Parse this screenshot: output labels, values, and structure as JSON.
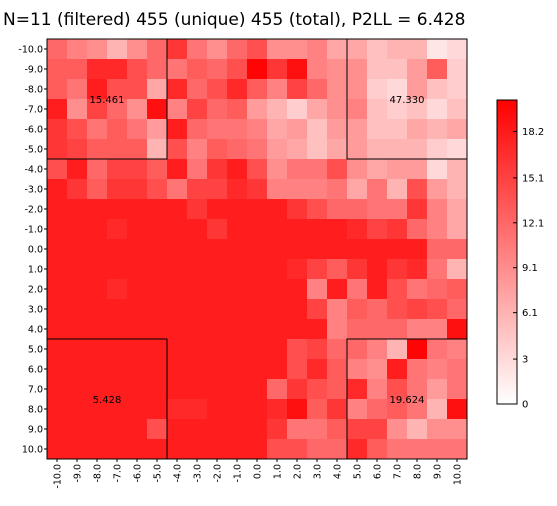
{
  "chart_data": {
    "type": "heatmap",
    "title": "N=11 (filtered) 455 (unique) 455 (total), P2LL = 6.428",
    "xlabel": "",
    "ylabel": "",
    "x_ticks": [
      "-10.0",
      "-9.0",
      "-8.0",
      "-7.0",
      "-6.0",
      "-5.0",
      "-4.0",
      "-3.0",
      "-2.0",
      "-1.0",
      "0.0",
      "1.0",
      "2.0",
      "3.0",
      "4.0",
      "5.0",
      "6.0",
      "7.0",
      "8.0",
      "9.0",
      "10.0"
    ],
    "y_ticks": [
      "-10.0",
      "-9.0",
      "-8.0",
      "-7.0",
      "-6.0",
      "-5.0",
      "-4.0",
      "-3.0",
      "-2.0",
      "-1.0",
      "0.0",
      "1.0",
      "2.0",
      "3.0",
      "4.0",
      "5.0",
      "6.0",
      "7.0",
      "8.0",
      "9.0",
      "10.0"
    ],
    "values": [
      [
        12,
        10,
        9,
        6,
        9,
        12,
        16,
        11,
        9,
        12,
        14,
        9,
        9,
        10,
        7,
        7,
        5,
        6,
        6,
        2,
        3
      ],
      [
        13,
        13,
        17,
        17,
        14,
        12,
        11,
        13,
        12,
        14,
        20,
        16,
        19,
        10,
        9,
        9,
        5,
        5,
        8,
        13,
        4
      ],
      [
        13,
        11,
        18,
        14,
        14,
        7,
        17,
        12,
        14,
        17,
        13,
        10,
        15,
        12,
        9,
        9,
        4,
        3,
        8,
        5,
        4
      ],
      [
        18,
        9,
        15,
        12,
        9,
        19,
        10,
        15,
        12,
        13,
        8,
        6,
        4,
        7,
        9,
        10,
        5,
        4,
        5,
        3,
        5
      ],
      [
        16,
        14,
        11,
        13,
        11,
        8,
        18,
        12,
        11,
        11,
        10,
        7,
        8,
        5,
        8,
        8,
        5,
        5,
        7,
        6,
        7
      ],
      [
        16,
        15,
        13,
        13,
        13,
        6,
        14,
        10,
        13,
        12,
        11,
        8,
        7,
        5,
        7,
        8,
        6,
        6,
        6,
        4,
        3
      ],
      [
        14,
        18,
        12,
        15,
        15,
        13,
        18,
        11,
        16,
        18,
        14,
        9,
        11,
        11,
        14,
        9,
        7,
        8,
        8,
        3,
        6
      ],
      [
        18,
        16,
        13,
        16,
        16,
        14,
        11,
        15,
        15,
        17,
        16,
        10,
        10,
        10,
        11,
        7,
        11,
        6,
        14,
        8,
        6
      ],
      [
        18,
        18,
        18,
        18,
        18,
        18,
        18,
        16,
        18,
        18,
        18,
        18,
        16,
        14,
        12,
        12,
        11,
        11,
        16,
        10,
        7
      ],
      [
        18,
        18,
        18,
        17,
        18,
        18,
        18,
        18,
        16,
        18,
        18,
        18,
        18,
        18,
        18,
        17,
        15,
        16,
        12,
        10,
        7
      ],
      [
        18,
        18,
        18,
        18,
        18,
        18,
        18,
        18,
        18,
        18,
        18,
        18,
        18,
        18,
        18,
        18,
        18,
        18,
        18,
        12,
        12
      ],
      [
        18,
        18,
        18,
        18,
        18,
        18,
        18,
        18,
        18,
        18,
        18,
        18,
        17,
        15,
        13,
        16,
        18,
        16,
        17,
        11,
        6
      ],
      [
        18,
        18,
        18,
        17,
        18,
        18,
        18,
        18,
        18,
        18,
        18,
        18,
        18,
        10,
        18,
        11,
        18,
        14,
        11,
        12,
        13
      ],
      [
        18,
        18,
        18,
        18,
        18,
        18,
        18,
        18,
        18,
        18,
        18,
        18,
        18,
        15,
        10,
        13,
        12,
        14,
        15,
        14,
        12
      ],
      [
        18,
        18,
        18,
        18,
        18,
        18,
        18,
        18,
        18,
        18,
        18,
        18,
        18,
        18,
        10,
        12,
        12,
        12,
        10,
        10,
        19
      ],
      [
        18,
        18,
        18,
        18,
        18,
        18,
        18,
        18,
        18,
        18,
        18,
        18,
        14,
        15,
        12,
        12,
        10,
        6,
        20,
        11,
        10
      ],
      [
        18,
        18,
        18,
        18,
        18,
        18,
        18,
        18,
        18,
        18,
        18,
        18,
        14,
        17,
        13,
        10,
        9,
        18,
        11,
        10,
        11
      ],
      [
        18,
        18,
        18,
        18,
        18,
        18,
        18,
        18,
        18,
        18,
        18,
        12,
        16,
        14,
        13,
        17,
        10,
        14,
        11,
        8,
        11
      ],
      [
        18,
        18,
        18,
        18,
        18,
        18,
        17,
        17,
        18,
        18,
        18,
        17,
        19,
        13,
        16,
        10,
        12,
        13,
        11,
        6,
        19
      ],
      [
        18,
        18,
        18,
        18,
        18,
        14,
        18,
        18,
        18,
        18,
        18,
        16,
        11,
        11,
        13,
        15,
        15,
        9,
        6,
        9,
        9
      ],
      [
        18,
        18,
        18,
        18,
        18,
        18,
        18,
        18,
        18,
        18,
        18,
        14,
        14,
        12,
        12,
        17,
        13,
        11,
        11,
        11,
        11
      ]
    ],
    "zlim": [
      0,
      20.3
    ],
    "colorbar_ticks": [
      "0",
      "3",
      "6.1",
      "9.1",
      "12.1",
      "15.1",
      "18.2"
    ],
    "colorbar_tick_values": [
      0,
      3.0,
      6.1,
      9.1,
      12.1,
      15.1,
      18.2
    ],
    "colors": {
      "low": "#ffffff",
      "high": "#ff0000"
    },
    "quadrant_labels": [
      {
        "text": "15.461",
        "x": -7.5,
        "y": -7.5
      },
      {
        "text": "47.330",
        "x": 7.5,
        "y": -7.5
      },
      {
        "text": "5.428",
        "x": -7.5,
        "y": 7.5
      },
      {
        "text": "19.624",
        "x": 7.5,
        "y": 7.5
      }
    ],
    "quadrant_boxes": [
      {
        "x0": -10.5,
        "x1": -4.5,
        "y0": -10.5,
        "y1": -4.5
      },
      {
        "x0": 4.5,
        "x1": 10.5,
        "y0": -10.5,
        "y1": -4.5
      },
      {
        "x0": -10.5,
        "x1": -4.5,
        "y0": 4.5,
        "y1": 10.5
      },
      {
        "x0": 4.5,
        "x1": 10.5,
        "y0": 4.5,
        "y1": 10.5
      }
    ]
  }
}
